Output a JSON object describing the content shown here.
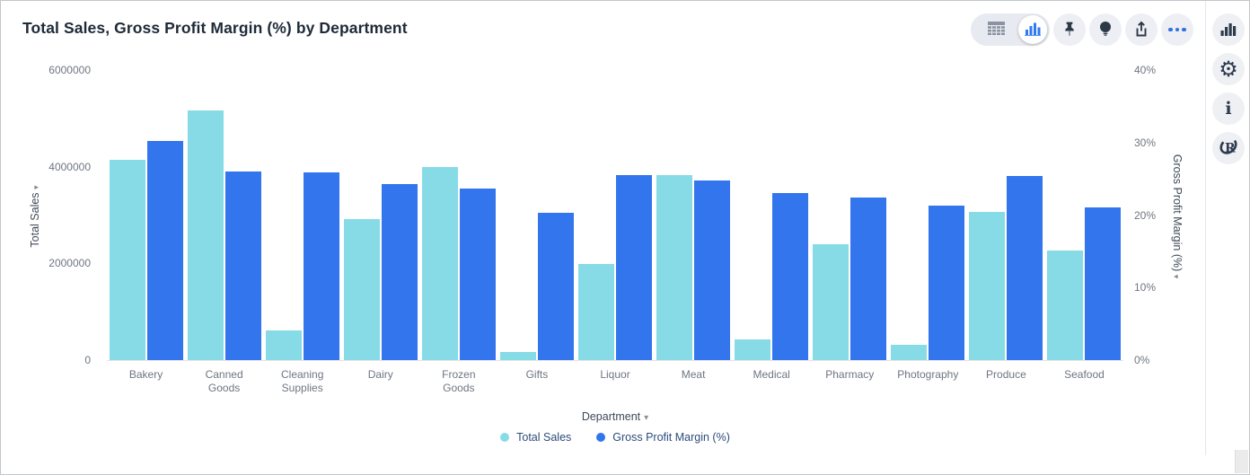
{
  "header": {
    "title": "Total Sales, Gross Profit Margin (%) by Department"
  },
  "toolbar": {
    "view_toggle": {
      "options": [
        {
          "icon": "table-icon",
          "selected": false
        },
        {
          "icon": "bar-chart-icon",
          "selected": true
        }
      ]
    },
    "buttons": [
      {
        "icon": "pin-icon"
      },
      {
        "icon": "lightbulb-icon"
      },
      {
        "icon": "export-icon"
      },
      {
        "icon": "more-options-icon"
      }
    ]
  },
  "right_sidebar": {
    "buttons": [
      {
        "icon": "bar-chart-icon"
      },
      {
        "icon": "gear-icon"
      },
      {
        "icon": "info-icon"
      },
      {
        "icon": "r-logo-icon"
      }
    ]
  },
  "colors": {
    "total_sales": "#87DBE6",
    "gross_profit_margin": "#3275EC",
    "accent_blue": "#3470DD"
  },
  "chart_data": {
    "type": "bar",
    "title": "Total Sales, Gross Profit Margin (%) by Department",
    "categories": [
      "Bakery",
      "Canned Goods",
      "Cleaning Supplies",
      "Dairy",
      "Frozen Goods",
      "Gifts",
      "Liquor",
      "Meat",
      "Medical",
      "Pharmacy",
      "Photography",
      "Produce",
      "Seafood"
    ],
    "series": [
      {
        "name": "Total Sales",
        "yaxis": "left",
        "color": "#87DBE6",
        "values": [
          4150000,
          5170000,
          610000,
          2920000,
          3990000,
          170000,
          1990000,
          3820000,
          430000,
          2400000,
          310000,
          3070000,
          2260000
        ]
      },
      {
        "name": "Gross Profit Margin (%)",
        "yaxis": "right",
        "color": "#3275EC",
        "values": [
          30.2,
          26.0,
          25.9,
          24.3,
          23.6,
          20.3,
          25.5,
          24.8,
          23.0,
          22.4,
          21.3,
          25.4,
          21.0
        ]
      }
    ],
    "xlabel": "Department",
    "left_axis": {
      "label": "Total Sales",
      "min": 0,
      "max": 6000000,
      "ticks": [
        "0",
        "2000000",
        "4000000",
        "6000000"
      ]
    },
    "right_axis": {
      "label": "Gross Profit Margin (%)",
      "min": 0,
      "max": 40,
      "ticks": [
        "0%",
        "10%",
        "20%",
        "30%",
        "40%"
      ]
    },
    "legend": {
      "position": "bottom",
      "items": [
        "Total Sales",
        "Gross Profit Margin (%)"
      ]
    },
    "grid": false
  }
}
